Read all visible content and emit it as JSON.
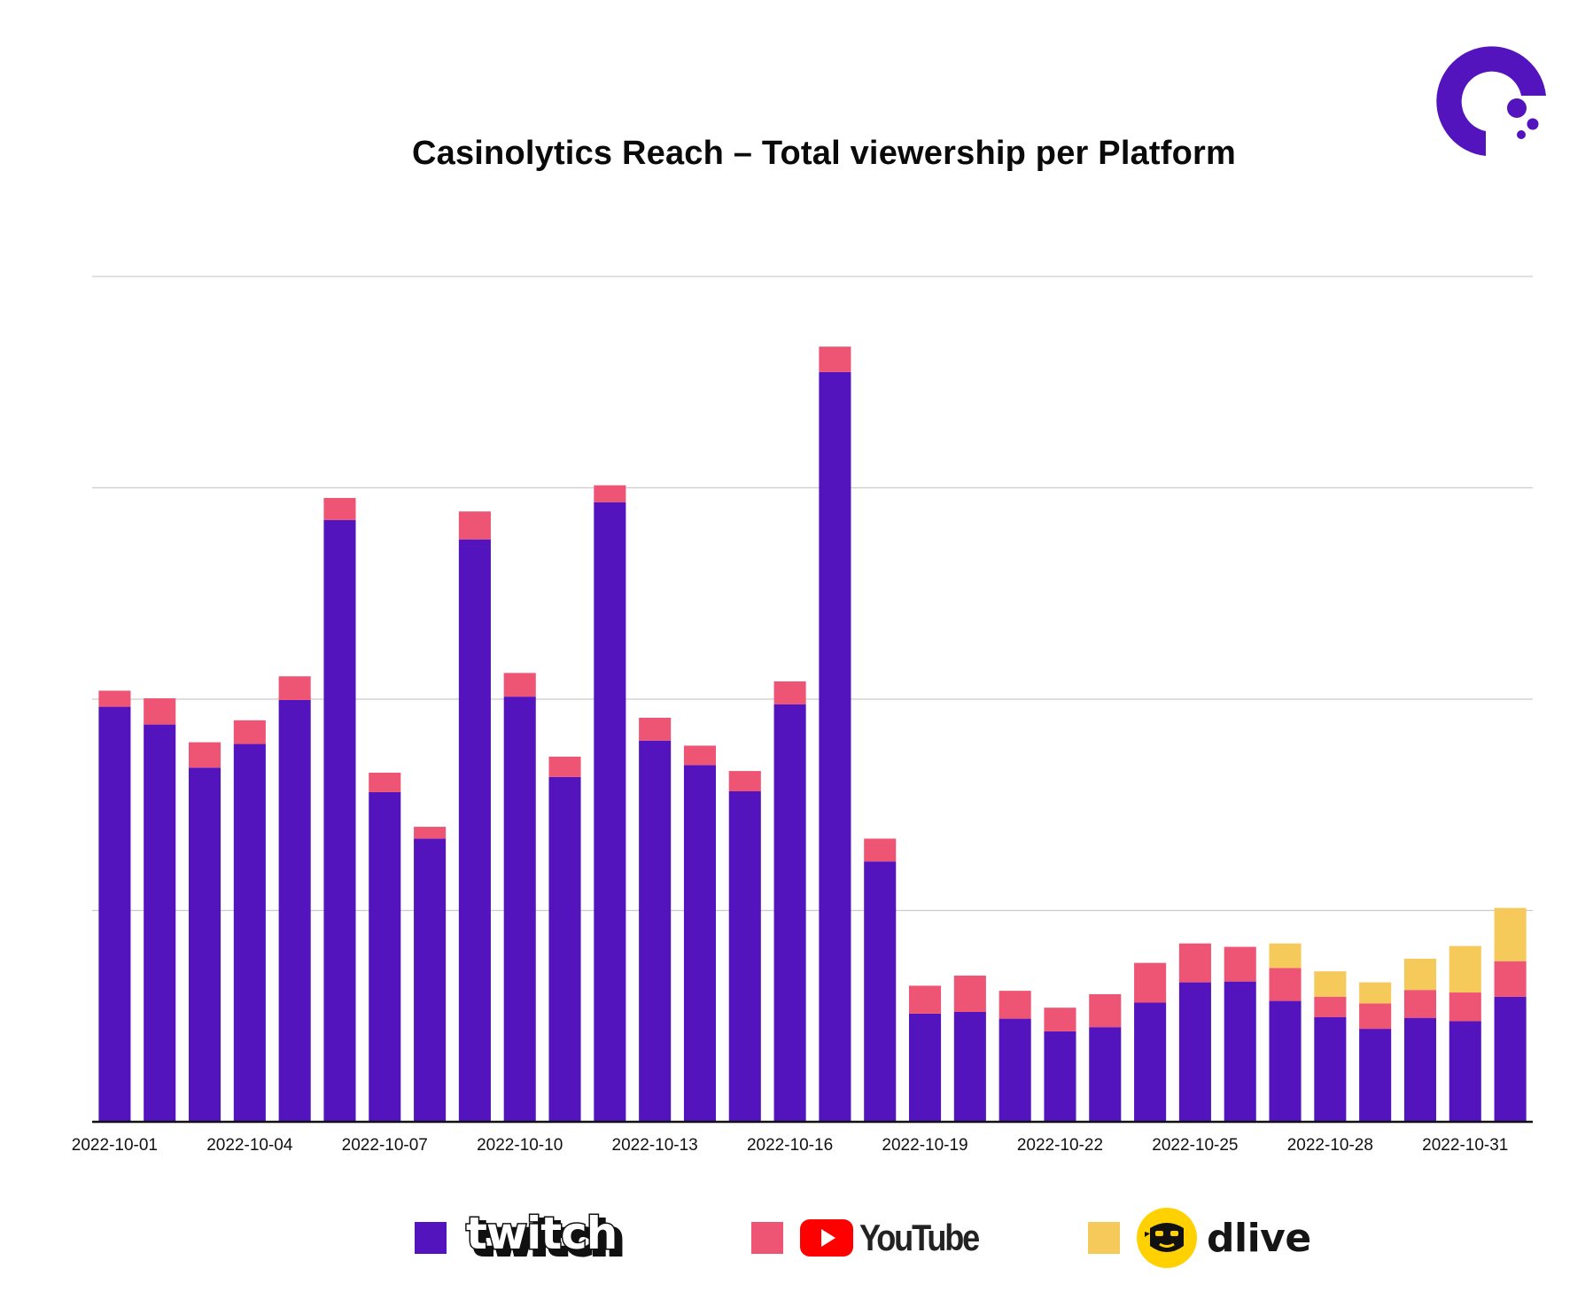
{
  "title": "Casinolytics Reach – Total viewership per Platform",
  "logo": {
    "name": "casinolytics-logo",
    "colors": {
      "ring": "#5314BE"
    }
  },
  "colors": {
    "twitch": "#5314BE",
    "youtube": "#EE5474",
    "dlive": "#F5C95A",
    "grid": "#cccccc",
    "axis": "#111111"
  },
  "legend": [
    {
      "key": "twitch",
      "label": "twitch",
      "color": "#5314BE",
      "icon": "twitch-logo"
    },
    {
      "key": "youtube",
      "label": "YouTube",
      "color": "#EE5474",
      "icon": "youtube-play-icon"
    },
    {
      "key": "dlive",
      "label": "dlive",
      "color": "#F5C95A",
      "icon": "dlive-mascot-icon"
    }
  ],
  "chart_data": {
    "type": "bar",
    "stacked": true,
    "title": "Casinolytics Reach – Total viewership per Platform",
    "xlabel": "",
    "ylabel": "",
    "ylim": [
      0,
      100
    ],
    "y_gridlines": [
      25,
      50,
      75,
      100
    ],
    "y_tick_labels_shown": false,
    "categories": [
      "2022-10-01",
      "2022-10-02",
      "2022-10-03",
      "2022-10-04",
      "2022-10-05",
      "2022-10-06",
      "2022-10-07",
      "2022-10-08",
      "2022-10-09",
      "2022-10-10",
      "2022-10-11",
      "2022-10-12",
      "2022-10-13",
      "2022-10-14",
      "2022-10-15",
      "2022-10-16",
      "2022-10-17",
      "2022-10-18",
      "2022-10-19",
      "2022-10-20",
      "2022-10-21",
      "2022-10-22",
      "2022-10-23",
      "2022-10-24",
      "2022-10-25",
      "2022-10-26",
      "2022-10-27",
      "2022-10-28",
      "2022-10-29",
      "2022-10-30",
      "2022-10-31",
      "2022-11-01"
    ],
    "x_tick_labels": [
      "2022-10-01",
      "2022-10-04",
      "2022-10-07",
      "2022-10-10",
      "2022-10-13",
      "2022-10-16",
      "2022-10-19",
      "2022-10-22",
      "2022-10-25",
      "2022-10-28",
      "2022-10-31"
    ],
    "series": [
      {
        "name": "twitch",
        "values": [
          49.1,
          47.0,
          41.9,
          44.7,
          49.9,
          71.2,
          39.0,
          33.5,
          68.9,
          50.3,
          40.8,
          73.3,
          45.1,
          42.2,
          39.1,
          49.4,
          88.7,
          30.8,
          12.8,
          13.0,
          12.2,
          10.7,
          11.2,
          14.1,
          16.5,
          16.6,
          14.3,
          12.4,
          11.0,
          12.3,
          11.9,
          14.8
        ]
      },
      {
        "name": "YouTube",
        "values": [
          1.9,
          3.1,
          3.0,
          2.8,
          2.8,
          2.6,
          2.3,
          1.4,
          3.3,
          2.8,
          2.4,
          2.0,
          2.7,
          2.3,
          2.4,
          2.7,
          3.0,
          2.7,
          3.3,
          4.3,
          3.3,
          2.8,
          3.9,
          4.7,
          4.6,
          4.1,
          3.9,
          2.4,
          3.0,
          3.3,
          3.4,
          4.2
        ]
      },
      {
        "name": "dlive",
        "values": [
          0,
          0,
          0,
          0,
          0,
          0,
          0,
          0,
          0,
          0,
          0,
          0,
          0,
          0,
          0,
          0,
          0,
          0,
          0,
          0,
          0,
          0,
          0,
          0,
          0,
          0,
          2.9,
          3.0,
          2.5,
          3.7,
          5.5,
          6.3
        ]
      }
    ]
  }
}
